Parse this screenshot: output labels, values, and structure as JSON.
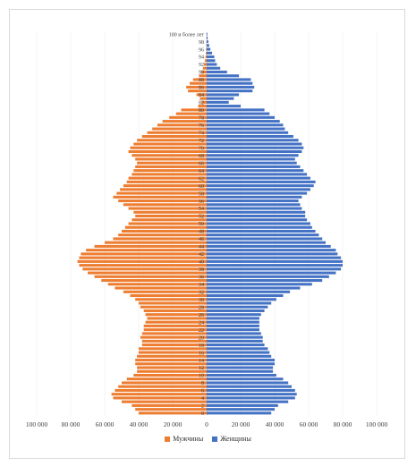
{
  "chart_data": {
    "type": "bar",
    "orientation": "horizontal",
    "subtype": "population-pyramid",
    "age_labels": [
      "0",
      "2",
      "4",
      "6",
      "8",
      "10",
      "12",
      "14",
      "16",
      "18",
      "20",
      "22",
      "24",
      "26",
      "28",
      "30",
      "32",
      "34",
      "36",
      "38",
      "40",
      "42",
      "44",
      "46",
      "48",
      "50",
      "52",
      "54",
      "56",
      "58",
      "60",
      "62",
      "64",
      "66",
      "68",
      "70",
      "72",
      "74",
      "76",
      "78",
      "80",
      "82",
      "84",
      "86",
      "88",
      "90",
      "92",
      "94",
      "96",
      "98",
      "100 и более лет"
    ],
    "xlim": [
      -100000,
      100000
    ],
    "x_ticks": [
      -100000,
      -80000,
      -60000,
      -40000,
      -20000,
      0,
      20000,
      40000,
      60000,
      80000,
      100000
    ],
    "x_tick_labels": [
      "100 000",
      "80 000",
      "60 000",
      "40 000",
      "20 000",
      "0",
      "20 000",
      "40 000",
      "60 000",
      "80 000",
      "100 000"
    ],
    "grid": true,
    "legend_position": "bottom",
    "series": [
      {
        "name": "Мужчины",
        "color": "#ed7d31",
        "values": [
          40000,
          42000,
          44000,
          50000,
          55000,
          56000,
          54000,
          52000,
          50000,
          47000,
          43000,
          41000,
          41000,
          42000,
          42000,
          41000,
          40000,
          40000,
          38000,
          38000,
          39000,
          38000,
          37000,
          37000,
          36000,
          35000,
          36000,
          37000,
          39000,
          40000,
          42000,
          45000,
          49000,
          54000,
          58000,
          62000,
          66000,
          70000,
          73000,
          75000,
          76000,
          75000,
          74000,
          71000,
          66000,
          60000,
          55000,
          52000,
          50000,
          48000,
          46000,
          44000,
          42000,
          43000,
          46000,
          49000,
          52000,
          55000,
          53000,
          51000,
          49000,
          47000,
          46000,
          44000,
          43000,
          42000,
          41000,
          42000,
          44000,
          46000,
          45000,
          43000,
          41000,
          38000,
          35000,
          32000,
          29000,
          26000,
          22000,
          18000,
          15000,
          5000,
          3000,
          4000,
          6000,
          11000,
          12000,
          10000,
          8000,
          4500,
          3000,
          2200,
          1600,
          1100,
          700,
          500,
          350,
          200,
          120,
          80,
          100
        ]
      },
      {
        "name": "Женщины",
        "color": "#4472c4",
        "values": [
          38000,
          40000,
          42000,
          48000,
          52000,
          53000,
          52000,
          50000,
          48000,
          45000,
          41000,
          39000,
          39000,
          40000,
          40000,
          38000,
          37000,
          36000,
          34000,
          33000,
          33000,
          32000,
          31000,
          31000,
          31000,
          31000,
          32000,
          34000,
          36000,
          38000,
          41000,
          45000,
          49000,
          55000,
          62000,
          68000,
          72000,
          76000,
          79000,
          80000,
          80000,
          79000,
          77000,
          76000,
          73000,
          70000,
          68000,
          66000,
          64000,
          62000,
          61000,
          59000,
          58000,
          58000,
          56000,
          55000,
          54000,
          56000,
          59000,
          61000,
          63000,
          64000,
          61000,
          59000,
          57000,
          55000,
          53000,
          52000,
          54000,
          56000,
          57000,
          56000,
          54000,
          51000,
          48000,
          46000,
          45000,
          43000,
          40000,
          37000,
          34000,
          20000,
          13000,
          16000,
          19000,
          27000,
          28000,
          27000,
          26000,
          19000,
          12000,
          8000,
          6000,
          5000,
          4500,
          3200,
          2200,
          1500,
          1000,
          600,
          400
        ]
      }
    ]
  }
}
